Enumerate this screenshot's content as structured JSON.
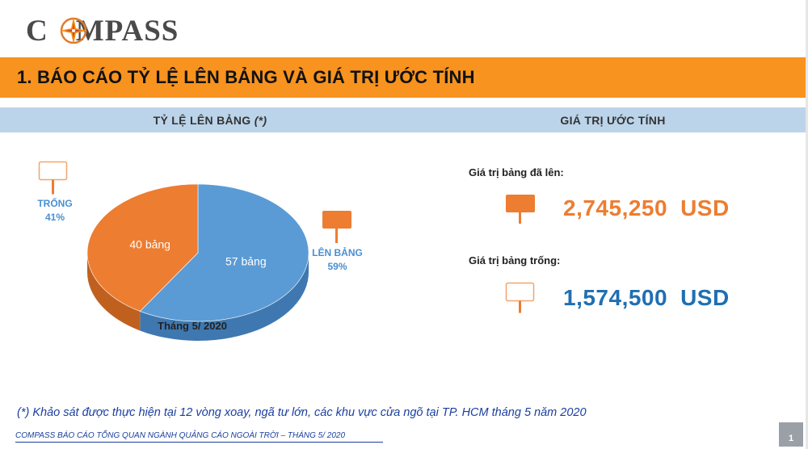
{
  "logo": {
    "text_left": "C",
    "text_right": "MPASS"
  },
  "title": "1. BÁO CÁO TỶ LỆ LÊN BẢNG VÀ GIÁ TRỊ ƯỚC TÍNH",
  "left_header": {
    "text": "TỶ LỆ LÊN BẢNG ",
    "note": "(*)"
  },
  "right_header": "GIÁ TRỊ ƯỚC TÍNH",
  "chart_data": {
    "type": "pie",
    "month_label": "Tháng 5/ 2020",
    "slices": [
      {
        "name": "LÊN BẢNG",
        "percent_label": "59%",
        "inner_label": "57 bảng",
        "value": 57,
        "color": "#5b9bd5",
        "side_color": "#3f78b0"
      },
      {
        "name": "TRỐNG",
        "percent_label": "41%",
        "inner_label": "40 bảng",
        "value": 40,
        "color": "#ed7d31",
        "side_color": "#c0601f"
      }
    ]
  },
  "values": {
    "used_caption": "Giá trị bảng đã lên:",
    "used_amount": "2,745,250",
    "used_unit": "USD",
    "empty_caption": "Giá trị bảng trống:",
    "empty_amount": "1,574,500",
    "empty_unit": "USD"
  },
  "colors": {
    "accent": "#f7931e",
    "strip": "#bcd4ea",
    "orange": "#ed7d31",
    "blue": "#1f6fb2"
  },
  "footnote": "(*) Khảo sát được thực hiện tại 12 vòng xoay, ngã tư lớn, các khu vực cửa ngõ tại TP. HCM tháng 5 năm 2020",
  "footer": "COMPASS BÁO CÁO TỔNG QUAN NGÀNH QUẢNG CÁO NGOÀI TRỜI – THÁNG 5/ 2020",
  "page_number": "1"
}
